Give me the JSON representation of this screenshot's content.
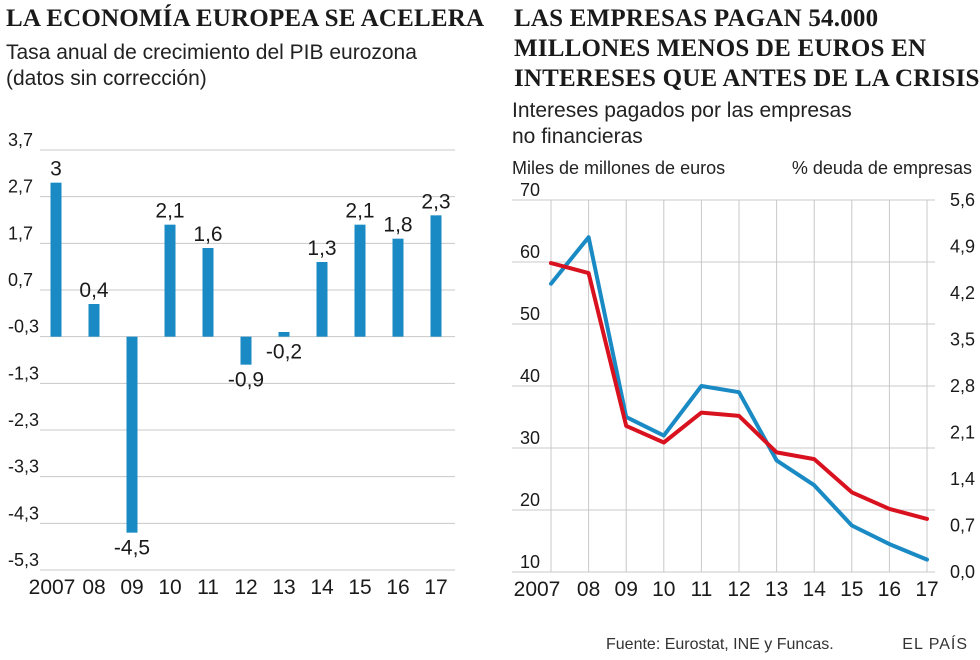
{
  "left": {
    "headline": "LA ECONOMÍA EUROPEA SE ACELERA",
    "subtitle_line1": "Tasa anual de crecimiento del PIB eurozona",
    "subtitle_line2": "(datos sin corrección)"
  },
  "right": {
    "headline_line1": "LAS EMPRESAS PAGAN 54.000",
    "headline_line2": "MILLONES MENOS DE EUROS EN",
    "headline_line3": "INTERESES QUE ANTES DE LA CRISIS",
    "subtitle_line1": "Intereses pagados por las empresas",
    "subtitle_line2": "no financieras",
    "left_axis_label": "Miles de millones de euros",
    "right_axis_label": "% deuda de empresas"
  },
  "footer": {
    "source": "Fuente: Eurostat, INE y Funcas.",
    "brand": "EL PAÍS"
  },
  "colors": {
    "bar": "#1a8ac4",
    "grid": "#c8c8c8",
    "blue": "#1a8ac4",
    "red": "#d9121f"
  },
  "chart_data": [
    {
      "type": "bar",
      "title": "LA ECONOMÍA EUROPEA SE ACELERA",
      "subtitle": "Tasa anual de crecimiento del PIB eurozona (datos sin corrección)",
      "categories": [
        "2007",
        "08",
        "09",
        "10",
        "11",
        "12",
        "13",
        "14",
        "15",
        "16",
        "17"
      ],
      "values": [
        3,
        0.4,
        -4.5,
        2.1,
        1.6,
        -0.9,
        -0.2,
        1.3,
        2.1,
        1.8,
        2.3
      ],
      "value_labels": [
        "3",
        "0,4",
        "-4,5",
        "2,1",
        "1,6",
        "-0,9",
        "-0,2",
        "1,3",
        "2,1",
        "1,8",
        "2,3"
      ],
      "yticks": [
        3.7,
        2.7,
        1.7,
        0.7,
        -0.3,
        -1.3,
        -2.3,
        -3.3,
        -4.3,
        -5.3
      ],
      "ytick_labels": [
        "3,7",
        "2,7",
        "1,7",
        "0,7",
        "-0,3",
        "-1,3",
        "-2,3",
        "-3,3",
        "-4,3",
        "-5,3"
      ],
      "ylim": [
        -5.3,
        3.7
      ],
      "baseline": -0.3,
      "grid": true
    },
    {
      "type": "line",
      "title": "LAS EMPRESAS PAGAN 54.000 MILLONES MENOS DE EUROS EN INTERESES QUE ANTES DE LA CRISIS",
      "x": [
        "2007",
        "08",
        "09",
        "10",
        "11",
        "12",
        "13",
        "14",
        "15",
        "16",
        "17"
      ],
      "series": [
        {
          "name": "Miles de millones de euros",
          "axis": "left",
          "color": "blue",
          "values": [
            56.5,
            64,
            35,
            32,
            40,
            39,
            28,
            24,
            17.5,
            14.5,
            12
          ]
        },
        {
          "name": "% deuda de empresas",
          "axis": "right",
          "color": "red",
          "values": [
            4.65,
            4.5,
            2.2,
            1.95,
            2.4,
            2.35,
            1.8,
            1.7,
            1.2,
            0.95,
            0.8
          ]
        }
      ],
      "ylim_left": [
        10,
        70
      ],
      "yticks_left": [
        "10",
        "20",
        "30",
        "40",
        "50",
        "60",
        "70"
      ],
      "ylim_right": [
        0,
        5.6
      ],
      "yticks_right": [
        "0,0",
        "0,7",
        "1,4",
        "2,1",
        "2,8",
        "3,5",
        "4,2",
        "4,9",
        "5,6"
      ],
      "grid": true
    }
  ]
}
